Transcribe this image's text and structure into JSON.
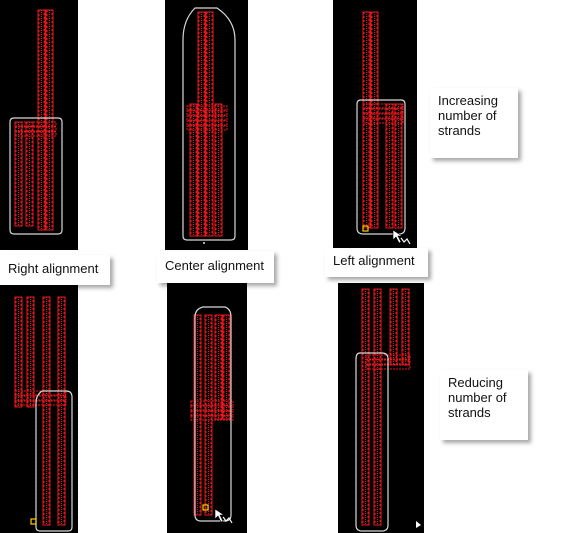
{
  "colors": {
    "background": "#000000",
    "strand": "#e8161b",
    "boundary": "#d8d8d8",
    "marker": "#ffd000"
  },
  "labels": {
    "right": "Right alignment",
    "center": "Center alignment",
    "left": "Left alignment",
    "increasing": [
      "Increasing",
      "number of",
      "strands"
    ],
    "reducing": [
      "Reducing",
      "number of",
      "strands"
    ]
  },
  "panels": {
    "top_right": {
      "strand_count_above": 2,
      "strand_count_below": 4
    },
    "top_center": {
      "strand_count_above": 4,
      "strand_count_below": 4
    },
    "top_left": {
      "strand_count_above": 2,
      "strand_count_below": 4
    },
    "bottom_right": {
      "strand_count_above": 4,
      "strand_count_below": 2
    },
    "bottom_center": {
      "strand_count_above": 4,
      "strand_count_below": 2
    },
    "bottom_left": {
      "strand_count_above": 4,
      "strand_count_below": 2
    }
  }
}
